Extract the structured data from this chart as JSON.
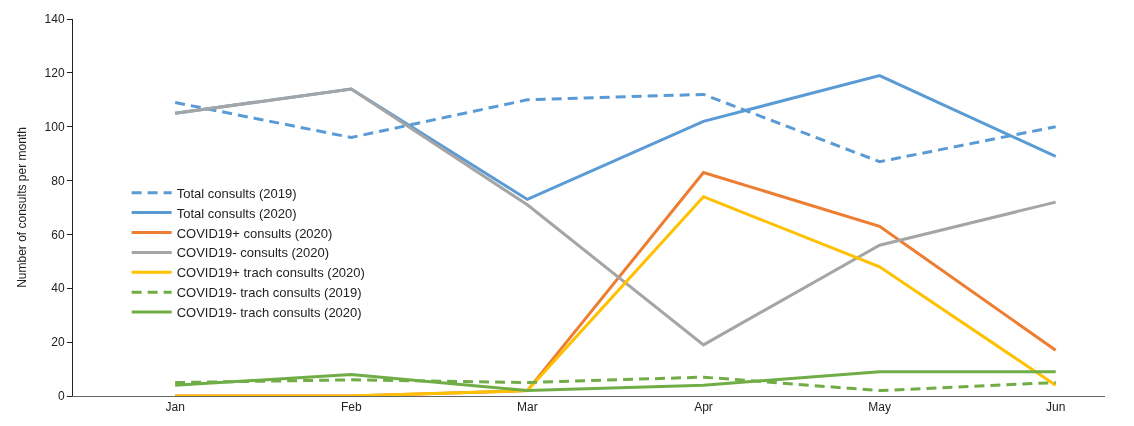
{
  "chart_data": {
    "type": "line",
    "ylabel": "Number of consults per month",
    "categories": [
      "Jan",
      "Feb",
      "Mar",
      "Apr",
      "May",
      "Jun"
    ],
    "series": [
      {
        "name": "Total consults (2019)",
        "color": "#5b9bd5",
        "line_style": "dashed",
        "values": [
          109,
          96,
          110,
          112,
          87,
          100
        ]
      },
      {
        "name": "Total consults (2020)",
        "color": "#5b9bd5",
        "line_style": "solid",
        "values": [
          105,
          114,
          73,
          102,
          119,
          89
        ]
      },
      {
        "name": "COVID19+ consults (2020)",
        "color": "#ed7d31",
        "line_style": "solid",
        "values": [
          0,
          0,
          2,
          83,
          63,
          17
        ]
      },
      {
        "name": "COVID19- consults (2020)",
        "color": "#a5a5a5",
        "line_style": "solid",
        "values": [
          105,
          114,
          71,
          19,
          56,
          72
        ]
      },
      {
        "name": "COVID19+ trach consults (2020)",
        "color": "#ffc000",
        "line_style": "solid",
        "values": [
          0,
          0,
          2,
          74,
          48,
          4
        ]
      },
      {
        "name": "COVID19- trach consults (2019)",
        "color": "#70ad47",
        "line_style": "dashed",
        "values": [
          5,
          6,
          5,
          7,
          2,
          5
        ]
      },
      {
        "name": "COVID19- trach consults (2020)",
        "color": "#70ad47",
        "line_style": "solid",
        "values": [
          4,
          8,
          2,
          4,
          9,
          9
        ]
      }
    ],
    "ylim": [
      0,
      140
    ],
    "yticks": [
      0,
      20,
      40,
      60,
      80,
      100,
      120,
      140
    ],
    "legend": "left",
    "marker": "none"
  }
}
